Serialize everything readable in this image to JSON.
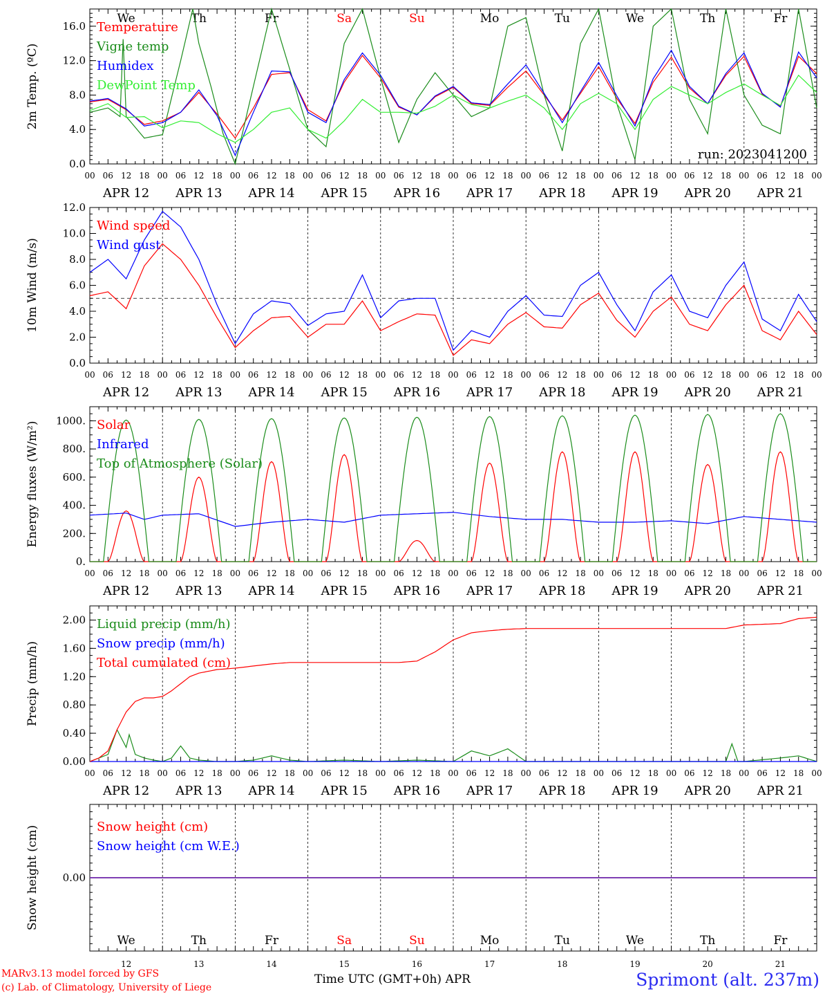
{
  "colors": {
    "red": "#ff0000",
    "green": "#1a8c1a",
    "blue": "#0000ff",
    "lightgreen": "#33ee33",
    "purple": "#7f3faf"
  },
  "x_axis": {
    "hour_ticks": [
      "00",
      "06",
      "12",
      "18"
    ],
    "final_tick": "00",
    "dates": [
      "APR 12",
      "APR 13",
      "APR 14",
      "APR 15",
      "APR 16",
      "APR 17",
      "APR 18",
      "APR 19",
      "APR 20",
      "APR 21"
    ],
    "weekdays": [
      "We",
      "Th",
      "Fr",
      "Sa",
      "Su",
      "Mo",
      "Tu",
      "We",
      "Th",
      "Fr"
    ],
    "weekend_index": [
      3,
      4
    ],
    "day_numbers": [
      "12",
      "13",
      "14",
      "15",
      "16",
      "17",
      "18",
      "19",
      "20",
      "21"
    ],
    "title": "Time UTC (GMT+0h)",
    "month": "APR"
  },
  "footer": {
    "credit_line1": "MARv3.13 model forced by GFS",
    "credit_line2": "(c) Lab. of Climatology, University of Liege",
    "station": "Sprimont (alt. 237m)"
  },
  "chart_data": [
    {
      "type": "line",
      "ylabel": "2m Temp. (ºC)",
      "ylim": [
        0,
        18
      ],
      "yticks": [
        "0.0",
        "4.0",
        "8.0",
        "12.0",
        "16.0"
      ],
      "annotation": "run: 2023041200",
      "x_unit": "hours since APR 12 00 UTC",
      "series": [
        {
          "name": "Temperature",
          "color": "#ff0000",
          "x": [
            0,
            6,
            12,
            18,
            24,
            30,
            36,
            42,
            48,
            54,
            60,
            66,
            72,
            78,
            84,
            90,
            96,
            102,
            108,
            114,
            120,
            126,
            132,
            138,
            144,
            150,
            156,
            162,
            168,
            174,
            180,
            186,
            192,
            198,
            204,
            210,
            216,
            222,
            228,
            234,
            240
          ],
          "y": [
            7.2,
            7.5,
            6.3,
            4.6,
            5.0,
            6.0,
            8.3,
            5.8,
            3.0,
            6.5,
            10.4,
            10.6,
            6.3,
            5.0,
            9.5,
            12.6,
            10.0,
            6.6,
            5.7,
            7.8,
            8.9,
            7.0,
            6.8,
            8.9,
            10.8,
            8.0,
            5.1,
            8.2,
            11.3,
            7.6,
            4.7,
            9.5,
            12.4,
            8.8,
            7.0,
            10.3,
            12.5,
            8.1,
            6.7,
            12.5,
            10.5
          ]
        },
        {
          "name": "Vigne temp",
          "color": "#1a8c1a",
          "x": [
            0,
            6,
            10,
            11,
            12,
            18,
            24,
            30,
            34,
            36,
            40,
            44,
            48,
            54,
            60,
            66,
            72,
            78,
            84,
            90,
            96,
            102,
            108,
            114,
            120,
            126,
            132,
            138,
            144,
            150,
            156,
            162,
            168,
            174,
            180,
            186,
            192,
            198,
            204,
            210,
            216,
            222,
            228,
            234,
            240
          ],
          "y": [
            6.0,
            6.5,
            5.5,
            14.5,
            5.5,
            3.0,
            3.4,
            12.0,
            18.0,
            14.0,
            9.0,
            3.5,
            0.0,
            9.0,
            18.0,
            11.0,
            4.0,
            2.0,
            14.0,
            18.0,
            10.0,
            2.5,
            7.5,
            10.6,
            8.0,
            5.5,
            6.5,
            16.0,
            17.0,
            8.0,
            1.5,
            14.0,
            18.0,
            7.0,
            0.5,
            16.0,
            18.0,
            7.5,
            3.5,
            18.0,
            8.0,
            4.5,
            3.5,
            18.0,
            6.5
          ]
        },
        {
          "name": "Humidex",
          "color": "#0000ff",
          "x": [
            0,
            6,
            12,
            18,
            24,
            30,
            36,
            42,
            48,
            54,
            60,
            66,
            72,
            78,
            84,
            90,
            96,
            102,
            108,
            114,
            120,
            126,
            132,
            138,
            144,
            150,
            156,
            162,
            168,
            174,
            180,
            186,
            192,
            198,
            204,
            210,
            216,
            222,
            228,
            234,
            240
          ],
          "y": [
            7.3,
            7.6,
            6.4,
            4.4,
            4.8,
            6.0,
            8.6,
            5.6,
            1.0,
            6.0,
            10.8,
            10.7,
            6.0,
            4.8,
            9.8,
            12.9,
            10.3,
            6.7,
            5.7,
            7.9,
            9.0,
            7.1,
            6.9,
            9.3,
            11.5,
            8.2,
            4.8,
            8.4,
            11.8,
            7.9,
            4.4,
            9.9,
            13.2,
            9.0,
            7.0,
            10.5,
            12.9,
            8.2,
            6.6,
            13.0,
            10.0
          ]
        },
        {
          "name": "DewPoint Temp",
          "color": "#33ee33",
          "x": [
            0,
            6,
            12,
            18,
            24,
            30,
            36,
            42,
            48,
            54,
            60,
            66,
            72,
            78,
            84,
            90,
            96,
            102,
            108,
            114,
            120,
            126,
            132,
            138,
            144,
            150,
            156,
            162,
            168,
            174,
            180,
            186,
            192,
            198,
            204,
            210,
            216,
            222,
            228,
            234,
            240
          ],
          "y": [
            6.2,
            7.0,
            5.4,
            5.5,
            4.2,
            5.0,
            4.8,
            3.5,
            2.5,
            4.0,
            6.0,
            6.5,
            4.0,
            3.0,
            5.0,
            7.5,
            6.0,
            6.0,
            5.9,
            6.7,
            8.0,
            6.9,
            6.5,
            7.3,
            8.0,
            6.5,
            4.0,
            7.0,
            8.2,
            7.0,
            4.0,
            7.5,
            9.0,
            8.0,
            7.0,
            8.3,
            9.3,
            8.0,
            6.8,
            10.3,
            8.3
          ]
        }
      ]
    },
    {
      "type": "line",
      "ylabel": "10m Wind (m/s)",
      "ylim": [
        0,
        12
      ],
      "yticks": [
        "0.0",
        "2.0",
        "4.0",
        "6.0",
        "8.0",
        "10.0",
        "12.0"
      ],
      "reference_line": 5,
      "x_unit": "hours since APR 12 00 UTC",
      "series": [
        {
          "name": "Wind speed",
          "color": "#ff0000",
          "x": [
            0,
            6,
            12,
            18,
            24,
            30,
            36,
            42,
            48,
            54,
            60,
            66,
            72,
            78,
            84,
            90,
            96,
            102,
            108,
            114,
            120,
            126,
            132,
            138,
            144,
            150,
            156,
            162,
            168,
            174,
            180,
            186,
            192,
            198,
            204,
            210,
            216,
            222,
            228,
            234,
            240
          ],
          "y": [
            5.2,
            5.5,
            4.2,
            7.5,
            9.2,
            8.0,
            6.0,
            3.5,
            1.2,
            2.5,
            3.5,
            3.6,
            2.0,
            3.0,
            3.0,
            4.8,
            2.5,
            3.2,
            3.8,
            3.7,
            0.6,
            1.8,
            1.5,
            3.0,
            3.9,
            2.8,
            2.7,
            4.5,
            5.4,
            3.3,
            2.0,
            4.0,
            5.1,
            3.0,
            2.5,
            4.5,
            6.0,
            2.5,
            1.8,
            4.0,
            2.2
          ]
        },
        {
          "name": "Wind gust",
          "color": "#0000ff",
          "x": [
            0,
            6,
            12,
            18,
            24,
            30,
            36,
            42,
            48,
            54,
            60,
            66,
            72,
            78,
            84,
            90,
            96,
            102,
            108,
            114,
            120,
            126,
            132,
            138,
            144,
            150,
            156,
            162,
            168,
            174,
            180,
            186,
            192,
            198,
            204,
            210,
            216,
            222,
            228,
            234,
            240
          ],
          "y": [
            7.0,
            8.0,
            6.5,
            9.5,
            11.7,
            10.5,
            8.0,
            4.5,
            1.5,
            3.8,
            4.8,
            4.6,
            2.9,
            3.8,
            4.0,
            6.8,
            3.5,
            4.8,
            5.0,
            5.0,
            1.0,
            2.5,
            2.0,
            4.0,
            5.2,
            3.7,
            3.6,
            6.0,
            7.0,
            4.5,
            2.5,
            5.5,
            6.8,
            4.0,
            3.5,
            6.0,
            7.8,
            3.4,
            2.5,
            5.3,
            3.2
          ]
        }
      ]
    },
    {
      "type": "line",
      "ylabel": "Energy fluxes (W/m²)",
      "ylim": [
        0,
        1100
      ],
      "yticks": [
        "0.",
        "200.",
        "400.",
        "600.",
        "800.",
        "1000."
      ],
      "x_unit": "hours since APR 12 00 UTC",
      "series": [
        {
          "name": "Solar",
          "color": "#ff0000",
          "day_peaks": [
            360,
            600,
            710,
            760,
            150,
            700,
            780,
            780,
            690,
            780
          ]
        },
        {
          "name": "Infrared",
          "color": "#0000ff",
          "x": [
            0,
            12,
            18,
            24,
            36,
            48,
            60,
            72,
            84,
            96,
            108,
            120,
            132,
            144,
            156,
            168,
            180,
            192,
            204,
            216,
            228,
            240
          ],
          "y": [
            330,
            345,
            300,
            330,
            340,
            250,
            280,
            300,
            280,
            330,
            340,
            350,
            320,
            300,
            300,
            280,
            280,
            290,
            270,
            320,
            300,
            280
          ]
        },
        {
          "name": "Top of Atmosphere (Solar)",
          "color": "#1a8c1a",
          "day_peaks": [
            1005,
            1010,
            1015,
            1020,
            1025,
            1030,
            1035,
            1040,
            1045,
            1050
          ]
        }
      ]
    },
    {
      "type": "line",
      "ylabel": "Precip (mm/h)",
      "ylim": [
        0,
        2.2
      ],
      "yticks": [
        "0.00",
        "0.40",
        "0.80",
        "1.20",
        "1.60",
        "2.00"
      ],
      "x_unit": "hours since APR 12 00 UTC",
      "series": [
        {
          "name": "Liquid precip (mm/h)",
          "color": "#1a8c1a",
          "x": [
            0,
            3,
            6,
            9,
            12,
            13,
            15,
            18,
            21,
            24,
            27,
            30,
            33,
            36,
            42,
            48,
            54,
            60,
            66,
            72,
            84,
            96,
            108,
            120,
            126,
            132,
            138,
            144,
            150,
            156,
            168,
            180,
            192,
            204,
            210,
            212,
            214,
            216,
            228,
            234,
            240
          ],
          "y": [
            0,
            0.05,
            0.1,
            0.45,
            0.2,
            0.38,
            0.1,
            0.05,
            0.02,
            0,
            0.05,
            0.22,
            0.05,
            0.02,
            0,
            0,
            0.02,
            0.08,
            0.02,
            0,
            0.02,
            0,
            0.02,
            0,
            0.15,
            0.08,
            0.18,
            0,
            0,
            0,
            0,
            0,
            0,
            0,
            0,
            0.25,
            0,
            0,
            0.05,
            0.08,
            0
          ]
        },
        {
          "name": "Snow precip (mm/h)",
          "color": "#0000ff",
          "x": [
            0,
            240
          ],
          "y": [
            0,
            0
          ]
        },
        {
          "name": "Total cumulated (cm)",
          "color": "#ff0000",
          "x": [
            0,
            3,
            6,
            9,
            12,
            15,
            18,
            21,
            24,
            27,
            30,
            33,
            36,
            42,
            48,
            54,
            60,
            66,
            72,
            84,
            96,
            102,
            108,
            114,
            120,
            126,
            132,
            138,
            144,
            150,
            156,
            168,
            180,
            192,
            204,
            210,
            216,
            222,
            228,
            234,
            240
          ],
          "y": [
            0,
            0.05,
            0.15,
            0.45,
            0.7,
            0.85,
            0.9,
            0.9,
            0.92,
            1.0,
            1.1,
            1.2,
            1.25,
            1.3,
            1.32,
            1.35,
            1.38,
            1.4,
            1.4,
            1.4,
            1.4,
            1.4,
            1.42,
            1.55,
            1.72,
            1.82,
            1.85,
            1.87,
            1.88,
            1.88,
            1.88,
            1.88,
            1.88,
            1.88,
            1.88,
            1.88,
            1.93,
            1.94,
            1.95,
            2.02,
            2.04
          ]
        }
      ]
    },
    {
      "type": "line",
      "ylabel": "Snow height (cm)",
      "ylim": [
        -1,
        1
      ],
      "yticks": [
        "0.00"
      ],
      "x_unit": "hours since APR 12 00 UTC",
      "series": [
        {
          "name": "Snow height (cm)",
          "color": "#ff0000",
          "x": [
            0,
            240
          ],
          "y": [
            0,
            0
          ]
        },
        {
          "name": "Snow height (cm W.E.)",
          "color": "#0000ff",
          "x": [
            0,
            240
          ],
          "y": [
            0,
            0
          ]
        }
      ]
    }
  ]
}
